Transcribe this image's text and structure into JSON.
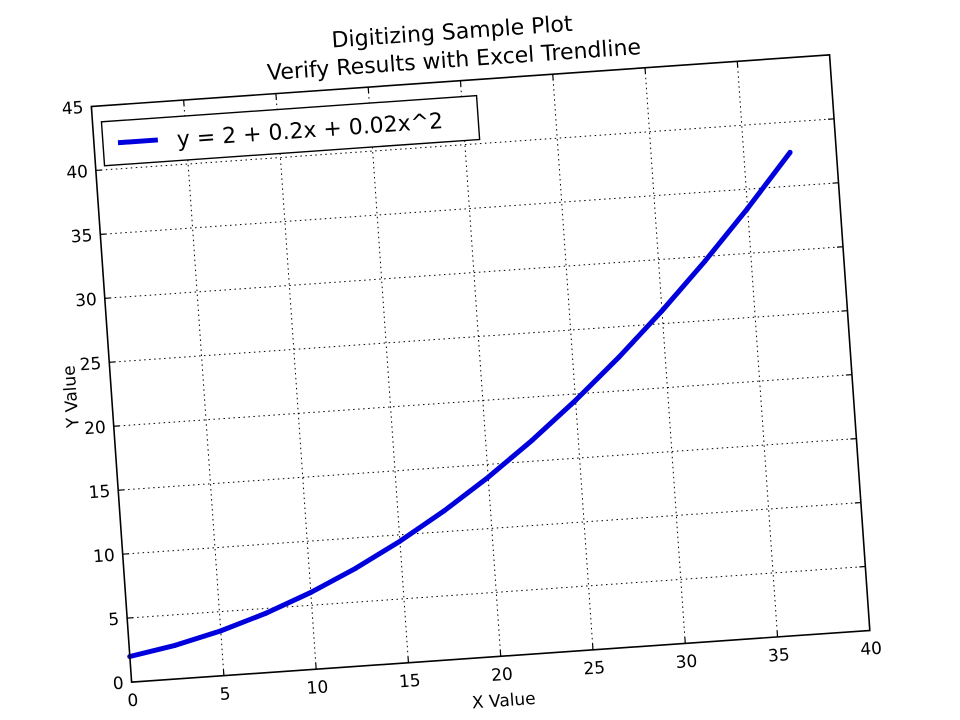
{
  "chart_data": {
    "type": "line",
    "title": "Digitizing Sample Plot",
    "subtitle": "Verify Results with Excel Trendline",
    "xlabel": "X Value",
    "ylabel": "Y Value",
    "xlim": [
      0,
      40
    ],
    "ylim": [
      0,
      45
    ],
    "xticks": [
      "0",
      "5",
      "10",
      "15",
      "20",
      "25",
      "30",
      "35",
      "40"
    ],
    "yticks": [
      "0",
      "5",
      "10",
      "15",
      "20",
      "25",
      "30",
      "35",
      "40",
      "45"
    ],
    "grid": true,
    "legend_position": "top-left",
    "series": [
      {
        "name": "y = 2 + 0.2x + 0.02x^2",
        "color": "#0000dd",
        "x": [
          0,
          2.5,
          5,
          7.5,
          10,
          12.5,
          15,
          17.5,
          20,
          22.5,
          25,
          27.5,
          30,
          32.5,
          35,
          37.5
        ],
        "y": [
          2,
          2.625,
          3.5,
          4.625,
          6,
          7.625,
          9.5,
          11.625,
          14,
          16.625,
          19.5,
          22.625,
          26,
          29.625,
          33.5,
          37.625
        ]
      }
    ]
  }
}
